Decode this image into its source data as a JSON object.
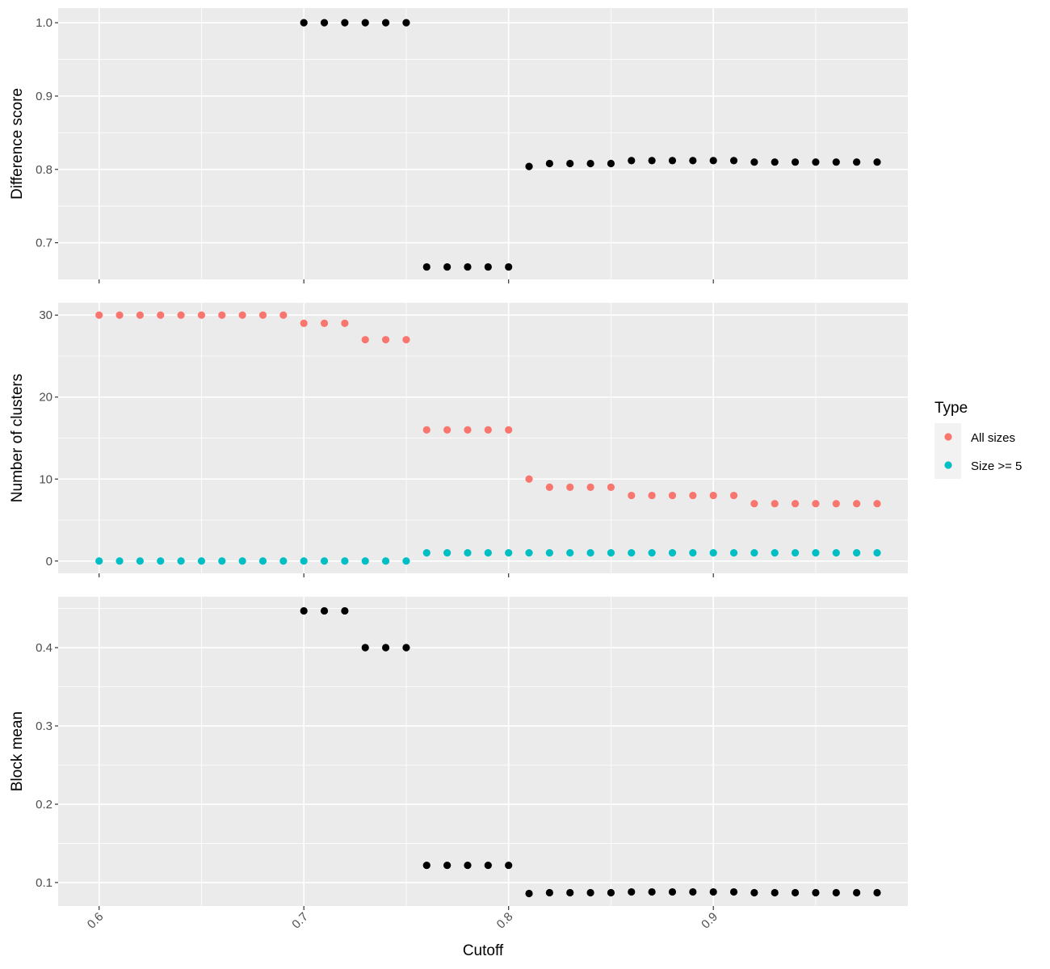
{
  "chart_data": {
    "type": "scatter",
    "x_axis": {
      "label": "Cutoff",
      "range": [
        0.58,
        0.995
      ],
      "ticks": [
        0.6,
        0.7,
        0.8,
        0.9
      ],
      "tick_labels": [
        "0.6",
        "0.7",
        "0.8",
        "0.9"
      ],
      "tick_label_rotation": "-45deg"
    },
    "colors": {
      "panel_bg": "#ebebeb",
      "grid": "#ffffff",
      "default_point": "#000000",
      "all_sizes": "#F8766D",
      "size_ge_5": "#00BFC4"
    },
    "legend": {
      "title": "Type",
      "placement": "right",
      "entries": [
        {
          "label": "All sizes",
          "color": "#F8766D"
        },
        {
          "label": "Size >= 5",
          "color": "#00BFC4"
        }
      ]
    },
    "panels": [
      {
        "ylabel": "Difference score",
        "ylim": [
          0.65,
          1.02
        ],
        "yticks": [
          0.7,
          0.8,
          0.9,
          1.0
        ],
        "ytick_labels": [
          "0.7",
          "0.8",
          "0.9",
          "1.0"
        ],
        "series": [
          {
            "color": "#000000",
            "x": [
              0.7,
              0.71,
              0.72,
              0.73,
              0.74,
              0.75,
              0.76,
              0.77,
              0.78,
              0.79,
              0.8,
              0.81,
              0.82,
              0.83,
              0.84,
              0.85,
              0.86,
              0.87,
              0.88,
              0.89,
              0.9,
              0.91,
              0.92,
              0.93,
              0.94,
              0.95,
              0.96,
              0.97,
              0.98
            ],
            "y": [
              1.0,
              1.0,
              1.0,
              1.0,
              1.0,
              1.0,
              0.667,
              0.667,
              0.667,
              0.667,
              0.667,
              0.804,
              0.808,
              0.808,
              0.808,
              0.808,
              0.812,
              0.812,
              0.812,
              0.812,
              0.812,
              0.812,
              0.81,
              0.81,
              0.81,
              0.81,
              0.81,
              0.81,
              0.81
            ]
          }
        ]
      },
      {
        "ylabel": "Number of clusters",
        "ylim": [
          -1.5,
          31.5
        ],
        "yticks": [
          0,
          10,
          20,
          30
        ],
        "ytick_labels": [
          "0",
          "10",
          "20",
          "30"
        ],
        "series": [
          {
            "name": "All sizes",
            "color": "#F8766D",
            "x": [
              0.6,
              0.61,
              0.62,
              0.63,
              0.64,
              0.65,
              0.66,
              0.67,
              0.68,
              0.69,
              0.7,
              0.71,
              0.72,
              0.73,
              0.74,
              0.75,
              0.76,
              0.77,
              0.78,
              0.79,
              0.8,
              0.81,
              0.82,
              0.83,
              0.84,
              0.85,
              0.86,
              0.87,
              0.88,
              0.89,
              0.9,
              0.91,
              0.92,
              0.93,
              0.94,
              0.95,
              0.96,
              0.97,
              0.98
            ],
            "y": [
              30,
              30,
              30,
              30,
              30,
              30,
              30,
              30,
              30,
              30,
              29,
              29,
              29,
              27,
              27,
              27,
              16,
              16,
              16,
              16,
              16,
              10,
              9,
              9,
              9,
              9,
              8,
              8,
              8,
              8,
              8,
              8,
              7,
              7,
              7,
              7,
              7,
              7,
              7
            ]
          },
          {
            "name": "Size >= 5",
            "color": "#00BFC4",
            "x": [
              0.6,
              0.61,
              0.62,
              0.63,
              0.64,
              0.65,
              0.66,
              0.67,
              0.68,
              0.69,
              0.7,
              0.71,
              0.72,
              0.73,
              0.74,
              0.75,
              0.76,
              0.77,
              0.78,
              0.79,
              0.8,
              0.81,
              0.82,
              0.83,
              0.84,
              0.85,
              0.86,
              0.87,
              0.88,
              0.89,
              0.9,
              0.91,
              0.92,
              0.93,
              0.94,
              0.95,
              0.96,
              0.97,
              0.98
            ],
            "y": [
              0,
              0,
              0,
              0,
              0,
              0,
              0,
              0,
              0,
              0,
              0,
              0,
              0,
              0,
              0,
              0,
              1,
              1,
              1,
              1,
              1,
              1,
              1,
              1,
              1,
              1,
              1,
              1,
              1,
              1,
              1,
              1,
              1,
              1,
              1,
              1,
              1,
              1,
              1
            ]
          }
        ]
      },
      {
        "ylabel": "Block mean",
        "ylim": [
          0.07,
          0.465
        ],
        "yticks": [
          0.1,
          0.2,
          0.3,
          0.4
        ],
        "ytick_labels": [
          "0.1",
          "0.2",
          "0.3",
          "0.4"
        ],
        "series": [
          {
            "color": "#000000",
            "x": [
              0.7,
              0.71,
              0.72,
              0.73,
              0.74,
              0.75,
              0.76,
              0.77,
              0.78,
              0.79,
              0.8,
              0.81,
              0.82,
              0.83,
              0.84,
              0.85,
              0.86,
              0.87,
              0.88,
              0.89,
              0.9,
              0.91,
              0.92,
              0.93,
              0.94,
              0.95,
              0.96,
              0.97,
              0.98
            ],
            "y": [
              0.447,
              0.447,
              0.447,
              0.4,
              0.4,
              0.4,
              0.122,
              0.122,
              0.122,
              0.122,
              0.122,
              0.086,
              0.087,
              0.087,
              0.087,
              0.087,
              0.088,
              0.088,
              0.088,
              0.088,
              0.088,
              0.088,
              0.087,
              0.087,
              0.087,
              0.087,
              0.087,
              0.087,
              0.087
            ]
          }
        ]
      }
    ]
  }
}
